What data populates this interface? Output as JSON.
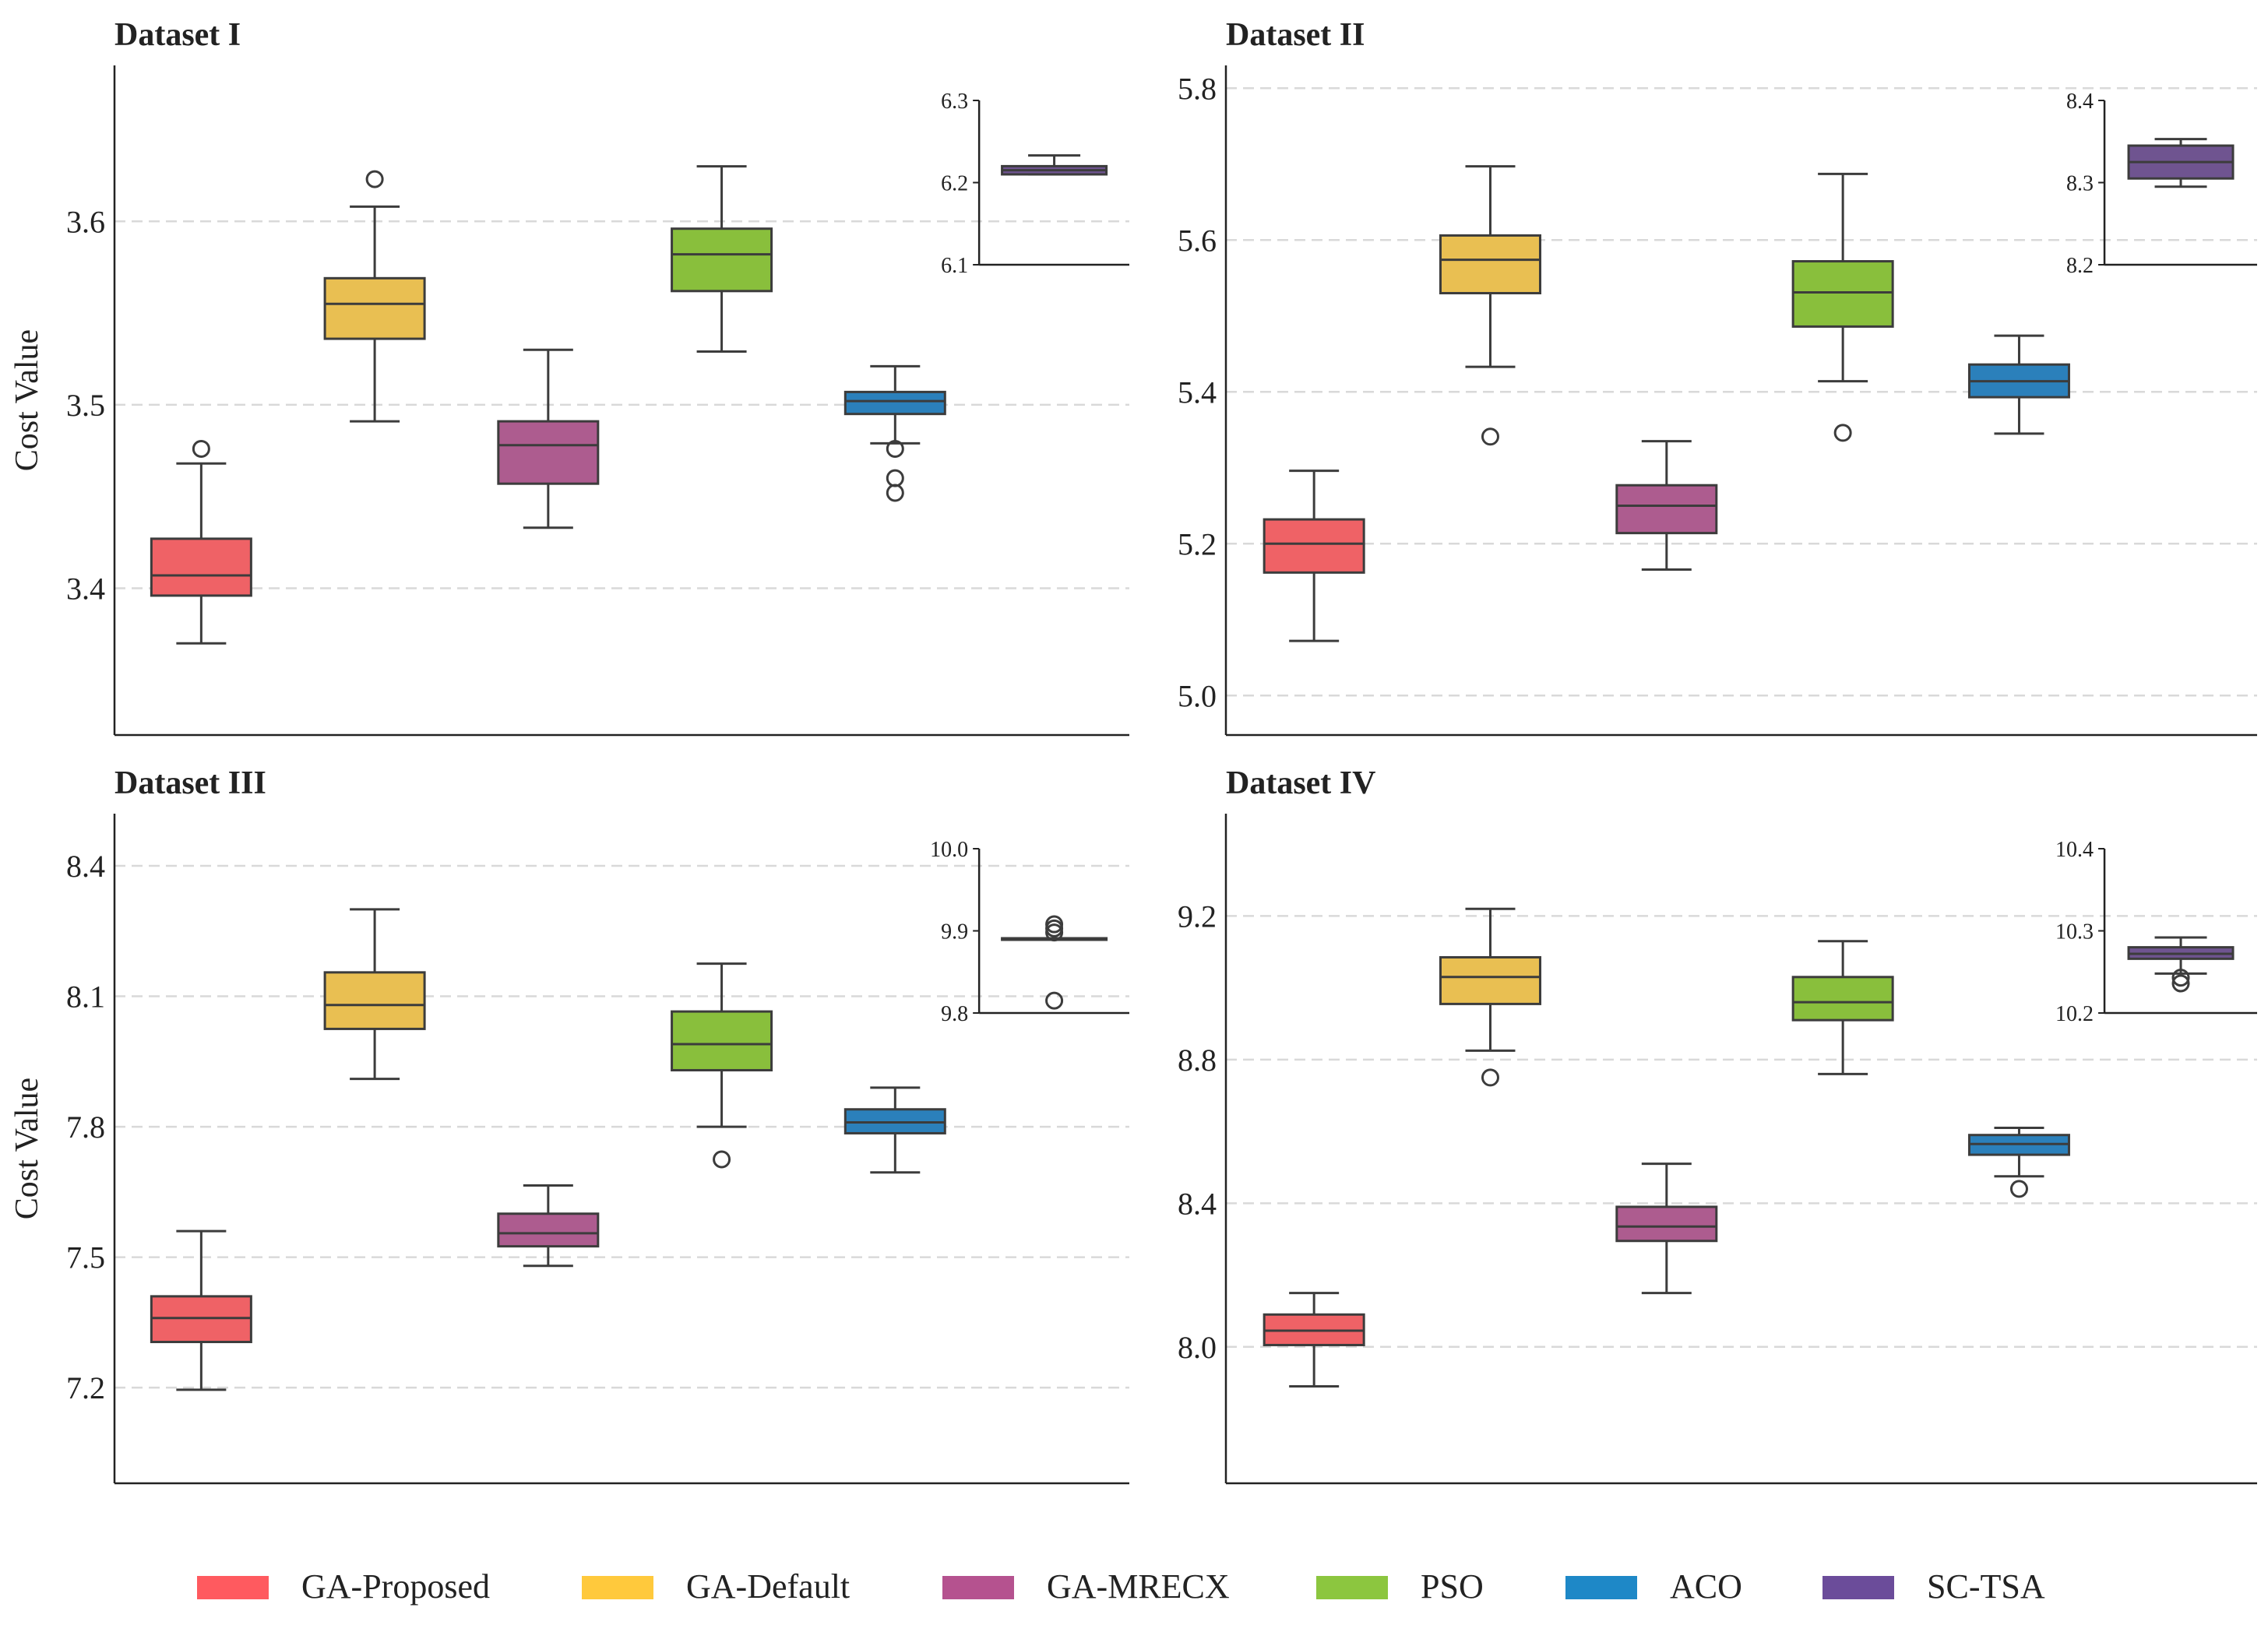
{
  "chart_data": [
    {
      "type": "box",
      "title": "Dataset I",
      "ylabel": "Cost Value",
      "ylim": [
        3.32,
        3.685
      ],
      "yticks": [
        3.4,
        3.5,
        3.6
      ],
      "ytick_labels": [
        "3.4",
        "3.5",
        "3.6"
      ],
      "grid": true,
      "series": [
        {
          "name": "GA-Proposed",
          "whisker_low": 3.37,
          "q1": 3.396,
          "median": 3.407,
          "q3": 3.427,
          "whisker_high": 3.468,
          "outliers": [
            3.476
          ]
        },
        {
          "name": "GA-Default",
          "whisker_low": 3.491,
          "q1": 3.536,
          "median": 3.555,
          "q3": 3.569,
          "whisker_high": 3.608,
          "outliers": [
            3.623
          ]
        },
        {
          "name": "GA-MRECX",
          "whisker_low": 3.433,
          "q1": 3.457,
          "median": 3.478,
          "q3": 3.491,
          "whisker_high": 3.53,
          "outliers": []
        },
        {
          "name": "PSO",
          "whisker_low": 3.529,
          "q1": 3.562,
          "median": 3.582,
          "q3": 3.596,
          "whisker_high": 3.63,
          "outliers": []
        },
        {
          "name": "ACO",
          "whisker_low": 3.479,
          "q1": 3.495,
          "median": 3.502,
          "q3": 3.507,
          "whisker_high": 3.521,
          "outliers": [
            3.476,
            3.46,
            3.452
          ]
        }
      ],
      "inset": {
        "ylim": [
          6.1,
          6.3
        ],
        "yticks": [
          6.1,
          6.2,
          6.3
        ],
        "ytick_labels": [
          "6.1",
          "6.2",
          "6.3"
        ],
        "series": {
          "name": "SC-TSA",
          "whisker_low": 6.21,
          "q1": 6.21,
          "median": 6.215,
          "q3": 6.22,
          "whisker_high": 6.233,
          "outliers": []
        }
      }
    },
    {
      "type": "box",
      "title": "Dataset II",
      "ylabel": "",
      "ylim": [
        4.948,
        5.83
      ],
      "yticks": [
        5.0,
        5.2,
        5.4,
        5.6,
        5.8
      ],
      "ytick_labels": [
        "5.0",
        "5.2",
        "5.4",
        "5.6",
        "5.8"
      ],
      "grid": true,
      "series": [
        {
          "name": "GA-Proposed",
          "whisker_low": 5.072,
          "q1": 5.162,
          "median": 5.2,
          "q3": 5.232,
          "whisker_high": 5.296,
          "outliers": []
        },
        {
          "name": "GA-Default",
          "whisker_low": 5.433,
          "q1": 5.53,
          "median": 5.574,
          "q3": 5.606,
          "whisker_high": 5.697,
          "outliers": [
            5.341
          ]
        },
        {
          "name": "GA-MRECX",
          "whisker_low": 5.166,
          "q1": 5.214,
          "median": 5.25,
          "q3": 5.277,
          "whisker_high": 5.335,
          "outliers": []
        },
        {
          "name": "PSO",
          "whisker_low": 5.414,
          "q1": 5.486,
          "median": 5.531,
          "q3": 5.572,
          "whisker_high": 5.687,
          "outliers": [
            5.346
          ]
        },
        {
          "name": "ACO",
          "whisker_low": 5.345,
          "q1": 5.393,
          "median": 5.414,
          "q3": 5.436,
          "whisker_high": 5.474,
          "outliers": []
        }
      ],
      "inset": {
        "ylim": [
          8.2,
          8.4
        ],
        "yticks": [
          8.2,
          8.3,
          8.4
        ],
        "ytick_labels": [
          "8.2",
          "8.3",
          "8.4"
        ],
        "series": {
          "name": "SC-TSA",
          "whisker_low": 8.295,
          "q1": 8.305,
          "median": 8.325,
          "q3": 8.345,
          "whisker_high": 8.353,
          "outliers": []
        }
      }
    },
    {
      "type": "box",
      "title": "Dataset III",
      "ylabel": "Cost Value",
      "ylim": [
        6.98,
        8.52
      ],
      "yticks": [
        7.2,
        7.5,
        7.8,
        8.1,
        8.4
      ],
      "ytick_labels": [
        "7.2",
        "7.5",
        "7.8",
        "8.1",
        "8.4"
      ],
      "grid": true,
      "series": [
        {
          "name": "GA-Proposed",
          "whisker_low": 7.195,
          "q1": 7.305,
          "median": 7.36,
          "q3": 7.41,
          "whisker_high": 7.56,
          "outliers": []
        },
        {
          "name": "GA-Default",
          "whisker_low": 7.91,
          "q1": 8.025,
          "median": 8.08,
          "q3": 8.155,
          "whisker_high": 8.3,
          "outliers": []
        },
        {
          "name": "GA-MRECX",
          "whisker_low": 7.48,
          "q1": 7.525,
          "median": 7.555,
          "q3": 7.6,
          "whisker_high": 7.665,
          "outliers": []
        },
        {
          "name": "PSO",
          "whisker_low": 7.8,
          "q1": 7.93,
          "median": 7.99,
          "q3": 8.065,
          "whisker_high": 8.175,
          "outliers": [
            7.725
          ]
        },
        {
          "name": "ACO",
          "whisker_low": 7.695,
          "q1": 7.785,
          "median": 7.81,
          "q3": 7.84,
          "whisker_high": 7.89,
          "outliers": []
        }
      ],
      "inset": {
        "ylim": [
          9.8,
          10.0
        ],
        "yticks": [
          9.8,
          9.9,
          10.0
        ],
        "ytick_labels": [
          "9.8",
          "9.9",
          "10.0"
        ],
        "series": {
          "name": "SC-TSA",
          "whisker_low": 9.89,
          "q1": 9.89,
          "median": 9.89,
          "q3": 9.891,
          "whisker_high": 9.891,
          "outliers": [
            9.908,
            9.903,
            9.898,
            9.815
          ]
        }
      }
    },
    {
      "type": "box",
      "title": "Dataset IV",
      "ylabel": "",
      "ylim": [
        7.62,
        9.485
      ],
      "yticks": [
        8.0,
        8.4,
        8.8,
        9.2
      ],
      "ytick_labels": [
        "8.0",
        "8.4",
        "8.8",
        "9.2"
      ],
      "grid": true,
      "series": [
        {
          "name": "GA-Proposed",
          "whisker_low": 7.89,
          "q1": 8.005,
          "median": 8.045,
          "q3": 8.09,
          "whisker_high": 8.15,
          "outliers": []
        },
        {
          "name": "GA-Default",
          "whisker_low": 8.825,
          "q1": 8.955,
          "median": 9.03,
          "q3": 9.085,
          "whisker_high": 9.22,
          "outliers": [
            8.75
          ]
        },
        {
          "name": "GA-MRECX",
          "whisker_low": 8.15,
          "q1": 8.295,
          "median": 8.335,
          "q3": 8.39,
          "whisker_high": 8.51,
          "outliers": []
        },
        {
          "name": "PSO",
          "whisker_low": 8.76,
          "q1": 8.91,
          "median": 8.96,
          "q3": 9.03,
          "whisker_high": 9.13,
          "outliers": []
        },
        {
          "name": "ACO",
          "whisker_low": 8.475,
          "q1": 8.535,
          "median": 8.565,
          "q3": 8.59,
          "whisker_high": 8.61,
          "outliers": [
            8.44
          ]
        }
      ],
      "inset": {
        "ylim": [
          10.2,
          10.4
        ],
        "yticks": [
          10.2,
          10.3,
          10.4
        ],
        "ytick_labels": [
          "10.2",
          "10.3",
          "10.4"
        ],
        "series": {
          "name": "SC-TSA",
          "whisker_low": 10.248,
          "q1": 10.266,
          "median": 10.272,
          "q3": 10.28,
          "whisker_high": 10.292,
          "outliers": [
            10.243,
            10.236
          ]
        }
      }
    }
  ],
  "legend": [
    {
      "label": "GA-Proposed",
      "color": "#ff5a5f"
    },
    {
      "label": "GA-Default",
      "color": "#ffc93c"
    },
    {
      "label": "GA-MRECX",
      "color": "#b5528f"
    },
    {
      "label": "PSO",
      "color": "#8cc63f"
    },
    {
      "label": "ACO",
      "color": "#1e88c7"
    },
    {
      "label": "SC-TSA",
      "color": "#6b4c9a"
    }
  ],
  "box_colors": {
    "GA-Proposed": "#ef6266",
    "GA-Default": "#e9bf52",
    "GA-MRECX": "#ad5c8f",
    "PSO": "#89bf3c",
    "ACO": "#2b80bb",
    "SC-TSA": "#6f5490"
  },
  "line_color": "#3c3c3c",
  "grid_color": "#d9d9d9"
}
